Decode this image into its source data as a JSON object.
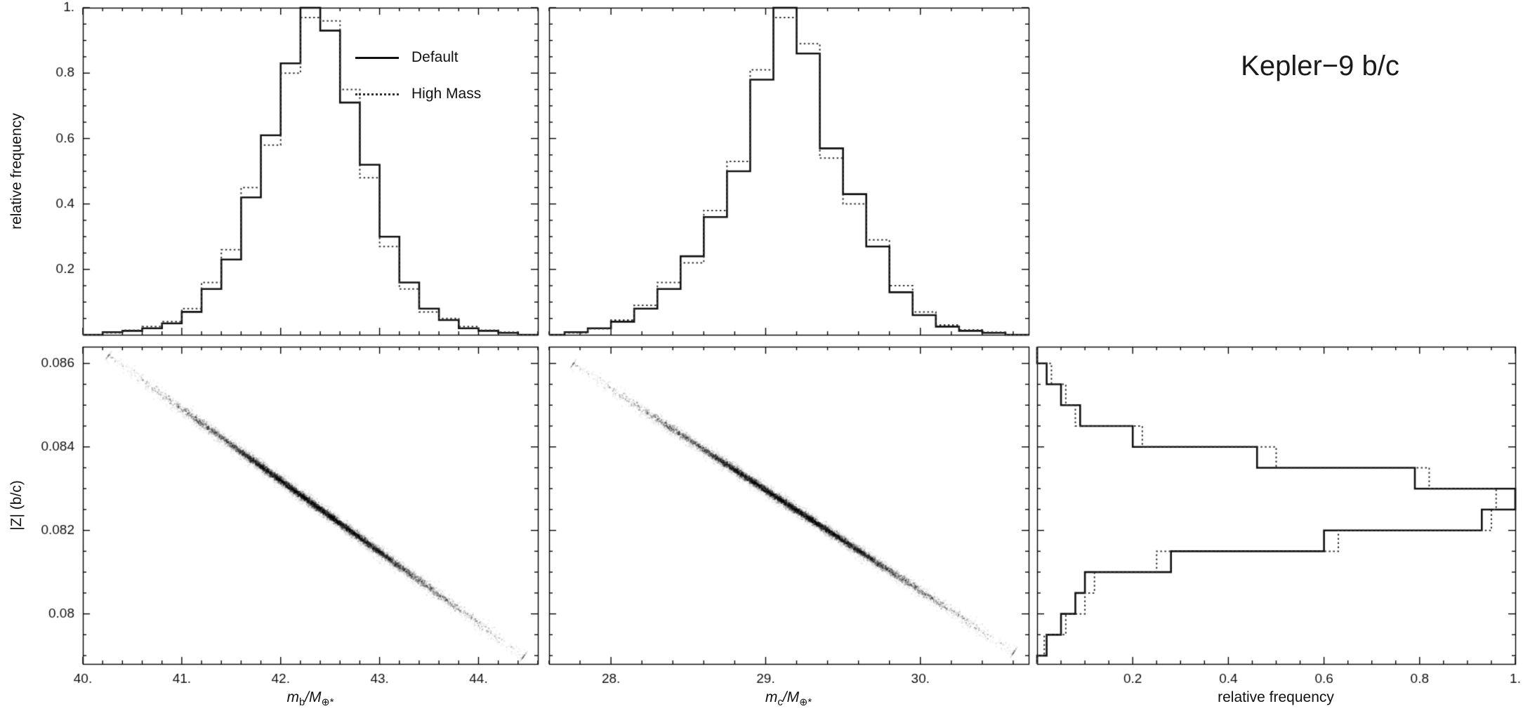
{
  "figure": {
    "title": "Kepler−9 b/c"
  },
  "colors": {
    "background": "#ffffff",
    "frame": "#000000",
    "ink": "#111111",
    "dotted": "#333333"
  },
  "legend": {
    "items": [
      {
        "label": "Default",
        "style": "solid"
      },
      {
        "label": "High Mass",
        "style": "dotted"
      }
    ]
  },
  "axis_titles": {
    "top_left_y": "relative frequency",
    "bottom_left_y": "|Z| (b/c)",
    "bottom_right_x": "relative frequency",
    "mb": {
      "sym": "m",
      "sub": "b",
      "den": "/M",
      "densub": "⊕*"
    },
    "mc": {
      "sym": "m",
      "sub": "c",
      "den": "/M",
      "densub": "⊕*"
    }
  },
  "chart_data": [
    {
      "id": "hist_mb",
      "type": "bar",
      "subtype": "step-histogram",
      "panel": "top-left",
      "orientation": "vertical",
      "xlabel": "m_b/M_⊕*",
      "ylabel": "relative frequency",
      "x_range": [
        40.0,
        44.6
      ],
      "y_range": [
        0,
        1.0
      ],
      "bins": {
        "start": 40.2,
        "width": 0.2,
        "count": 21
      },
      "series": [
        {
          "name": "Default",
          "line": "solid",
          "values": [
            0.008,
            0.012,
            0.02,
            0.035,
            0.07,
            0.14,
            0.23,
            0.42,
            0.61,
            0.83,
            1.0,
            0.93,
            0.71,
            0.52,
            0.3,
            0.16,
            0.08,
            0.045,
            0.02,
            0.012,
            0.006
          ]
        },
        {
          "name": "High Mass",
          "line": "dotted",
          "values": [
            0.006,
            0.014,
            0.025,
            0.04,
            0.08,
            0.16,
            0.26,
            0.45,
            0.58,
            0.8,
            0.97,
            0.96,
            0.75,
            0.48,
            0.27,
            0.14,
            0.07,
            0.05,
            0.025,
            0.014,
            0.008
          ]
        }
      ],
      "ticks": {
        "x": {
          "major": [
            40,
            41,
            42,
            43,
            44
          ],
          "labels": [],
          "minor_step": 0.2,
          "show_labels": false
        },
        "y": {
          "major": [
            0.2,
            0.4,
            0.6,
            0.8,
            1.0
          ],
          "labels": [
            "0.2",
            "0.4",
            "0.6",
            "0.8",
            "1."
          ],
          "minor_step": 0.05,
          "show_labels": true
        }
      }
    },
    {
      "id": "hist_mc",
      "type": "bar",
      "subtype": "step-histogram",
      "panel": "top-middle",
      "orientation": "vertical",
      "xlabel": "m_c/M_⊕*",
      "ylabel": "relative frequency",
      "x_range": [
        27.6,
        30.7
      ],
      "y_range": [
        0,
        1.0
      ],
      "bins": {
        "start": 27.7,
        "width": 0.15,
        "count": 19
      },
      "series": [
        {
          "name": "Default",
          "line": "solid",
          "values": [
            0.008,
            0.02,
            0.04,
            0.08,
            0.14,
            0.24,
            0.36,
            0.5,
            0.78,
            1.0,
            0.86,
            0.57,
            0.43,
            0.27,
            0.13,
            0.06,
            0.025,
            0.012,
            0.006
          ]
        },
        {
          "name": "High Mass",
          "line": "dotted",
          "values": [
            0.006,
            0.018,
            0.045,
            0.09,
            0.16,
            0.22,
            0.38,
            0.53,
            0.81,
            0.97,
            0.89,
            0.54,
            0.4,
            0.29,
            0.15,
            0.07,
            0.03,
            0.015,
            0.008
          ]
        }
      ],
      "ticks": {
        "x": {
          "major": [
            28,
            29,
            30
          ],
          "labels": [],
          "minor_step": 0.2,
          "show_labels": false
        },
        "y": {
          "major": [
            0.2,
            0.4,
            0.6,
            0.8,
            1.0
          ],
          "labels": [],
          "minor_step": 0.05,
          "show_labels": false
        }
      }
    },
    {
      "id": "scatter_mb_z",
      "type": "scatter",
      "panel": "bottom-left",
      "xlabel": "m_b/M_⊕*",
      "ylabel": "|Z| (b/c)",
      "x_range": [
        40.0,
        44.6
      ],
      "y_range": [
        0.0788,
        0.0864
      ],
      "trend": {
        "p1": [
          40.25,
          0.0862
        ],
        "p2": [
          44.45,
          0.079
        ]
      },
      "n_points": 9400,
      "layers": [
        {
          "n": 5200,
          "spread": 0.42,
          "thickness_px": 4.0,
          "alpha": 0.06,
          "size": 2
        },
        {
          "n": 4200,
          "spread": 0.3,
          "thickness_px": 2.0,
          "alpha": 0.22,
          "size": 2
        }
      ],
      "ticks": {
        "x": {
          "major": [
            40,
            41,
            42,
            43,
            44
          ],
          "labels": [
            "40.",
            "41.",
            "42.",
            "43.",
            "44."
          ],
          "minor_step": 0.2,
          "show_labels": true
        },
        "y": {
          "major": [
            0.08,
            0.082,
            0.084,
            0.086
          ],
          "labels": [
            "0.08",
            "0.082",
            "0.084",
            "0.086"
          ],
          "minor_step": 0.0005,
          "show_labels": true
        }
      }
    },
    {
      "id": "scatter_mc_z",
      "type": "scatter",
      "panel": "bottom-middle",
      "xlabel": "m_c/M_⊕*",
      "ylabel": "|Z| (b/c)",
      "x_range": [
        27.6,
        30.7
      ],
      "y_range": [
        0.0788,
        0.0864
      ],
      "trend": {
        "p1": [
          27.75,
          0.086
        ],
        "p2": [
          30.6,
          0.0791
        ]
      },
      "n_points": 9400,
      "layers": [
        {
          "n": 5200,
          "spread": 0.42,
          "thickness_px": 4.0,
          "alpha": 0.06,
          "size": 2
        },
        {
          "n": 4200,
          "spread": 0.3,
          "thickness_px": 2.0,
          "alpha": 0.22,
          "size": 2
        }
      ],
      "ticks": {
        "x": {
          "major": [
            28,
            29,
            30
          ],
          "labels": [
            "28.",
            "29.",
            "30."
          ],
          "minor_step": 0.2,
          "show_labels": true
        },
        "y": {
          "major": [
            0.08,
            0.082,
            0.084,
            0.086
          ],
          "labels": [],
          "minor_step": 0.0005,
          "show_labels": false
        }
      }
    },
    {
      "id": "hist_z",
      "type": "bar",
      "subtype": "step-histogram",
      "panel": "bottom-right",
      "orientation": "horizontal",
      "xlabel": "relative frequency",
      "ylabel": "|Z| (b/c)",
      "x_range": [
        0,
        1.0
      ],
      "y_range": [
        0.0788,
        0.0864
      ],
      "bins": {
        "start": 0.079,
        "width": 0.0005,
        "count": 14
      },
      "series": [
        {
          "name": "Default",
          "line": "solid",
          "values": [
            0.02,
            0.05,
            0.08,
            0.1,
            0.28,
            0.6,
            0.93,
            1.0,
            0.79,
            0.46,
            0.2,
            0.09,
            0.05,
            0.02
          ]
        },
        {
          "name": "High Mass",
          "line": "dotted",
          "values": [
            0.015,
            0.06,
            0.1,
            0.12,
            0.25,
            0.63,
            0.95,
            0.96,
            0.82,
            0.5,
            0.22,
            0.08,
            0.06,
            0.03
          ]
        }
      ],
      "ticks": {
        "x": {
          "major": [
            0.2,
            0.4,
            0.6,
            0.8,
            1.0
          ],
          "labels": [
            "0.2",
            "0.4",
            "0.6",
            "0.8",
            "1."
          ],
          "minor_step": 0.05,
          "show_labels": true
        },
        "y": {
          "major": [
            0.08,
            0.082,
            0.084,
            0.086
          ],
          "labels": [],
          "minor_step": 0.0005,
          "show_labels": false
        }
      }
    }
  ]
}
